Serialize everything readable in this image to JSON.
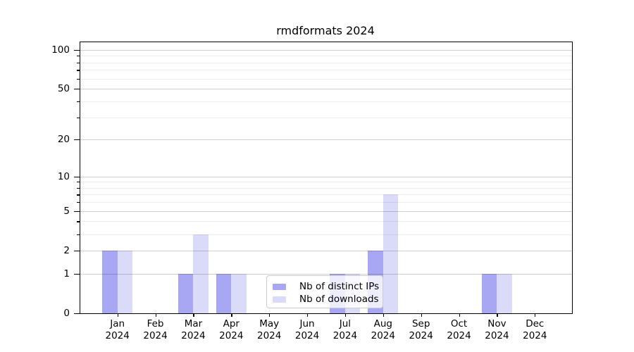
{
  "title": "rmdformats 2024",
  "chart_data": {
    "type": "bar",
    "title": "rmdformats 2024",
    "xlabel": "",
    "ylabel": "",
    "categories": [
      "Jan",
      "Feb",
      "Mar",
      "Apr",
      "May",
      "Jun",
      "Jul",
      "Aug",
      "Sep",
      "Oct",
      "Nov",
      "Dec"
    ],
    "category_year": "2024",
    "series": [
      {
        "name": "Nb of distinct IPs",
        "color": "#a7a7f4",
        "values": [
          2,
          0,
          1,
          1,
          0,
          0,
          1,
          2,
          0,
          0,
          1,
          0
        ]
      },
      {
        "name": "Nb of downloads",
        "color": "#dadaf9",
        "values": [
          2,
          0,
          3,
          1,
          0,
          0,
          1,
          7,
          0,
          0,
          1,
          0
        ]
      }
    ],
    "y_scale": "log1p",
    "y_max": 114.3,
    "y_ticks": [
      0,
      1,
      2,
      5,
      10,
      20,
      50,
      100
    ],
    "y_minor_ticks": [
      3,
      4,
      6,
      7,
      8,
      9,
      30,
      40,
      60,
      70,
      80,
      90
    ],
    "grid": "on",
    "grid_above_bars": true,
    "legend_position": "lower-center-inside"
  },
  "colors": {
    "background": "#ffffff",
    "axis": "#000000",
    "major_grid": "rgba(0,0,0,0.19)",
    "minor_grid": "rgba(0,0,0,0.07)",
    "legend_border": "#cccccc",
    "legend_background": "rgba(255,255,255,0.8)"
  }
}
